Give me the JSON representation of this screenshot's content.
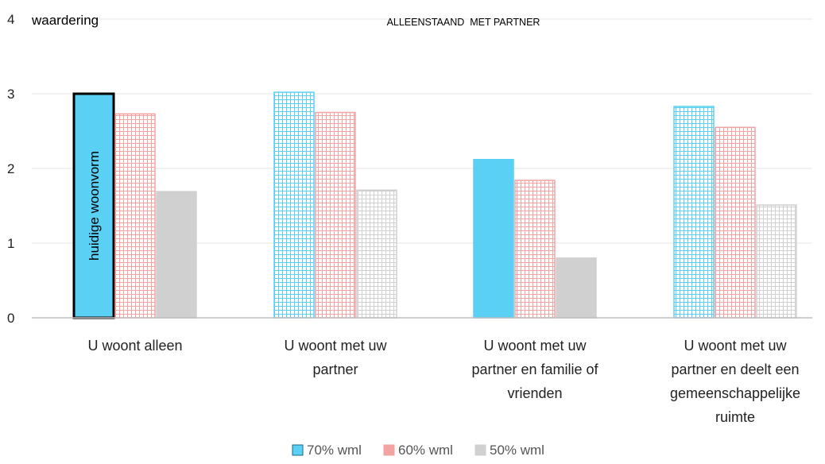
{
  "chart_data": {
    "type": "bar",
    "title": "ALLEENSTAAND  MET PARTNER",
    "ylabel": "waardering",
    "ylim": [
      0,
      4
    ],
    "yticks": [
      "0",
      "1",
      "2",
      "3",
      "4"
    ],
    "grid": true,
    "legend_position": "bottom",
    "categories": [
      [
        "U woont alleen"
      ],
      [
        "U woont met uw",
        "partner"
      ],
      [
        "U woont met uw",
        "partner en familie of",
        "vrienden"
      ],
      [
        "U woont met uw",
        "partner en deelt een",
        "gemeenschappelijke",
        "ruimte"
      ]
    ],
    "series": [
      {
        "name": "70% wml",
        "values": [
          3.0,
          3.02,
          2.12,
          2.83
        ],
        "color": "#5bd0f5",
        "solid": [
          true,
          false,
          true,
          false
        ]
      },
      {
        "name": "60% wml",
        "values": [
          2.73,
          2.75,
          1.84,
          2.55
        ],
        "color": "#f4a3a3",
        "solid": [
          false,
          false,
          false,
          false
        ]
      },
      {
        "name": "50% wml",
        "values": [
          1.69,
          1.71,
          0.8,
          1.51
        ],
        "color": "#d0d0d0",
        "solid": [
          true,
          false,
          true,
          false
        ]
      }
    ],
    "annotations": [
      {
        "text": "huidige woonvorm",
        "category": 0,
        "series": 0
      }
    ]
  }
}
